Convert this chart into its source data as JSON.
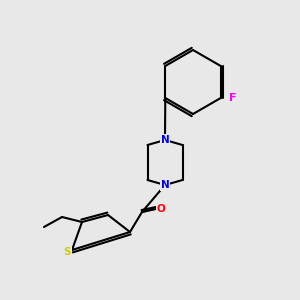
{
  "background_color": "#e8e8e8",
  "fig_size": [
    3.0,
    3.0
  ],
  "dpi": 100,
  "bond_color": "#000000",
  "bond_width": 1.5,
  "atom_colors": {
    "N": "#0000ee",
    "O": "#ff0000",
    "S": "#cccc00",
    "F": "#ff00ff",
    "C": "#000000"
  },
  "font_size": 7.5,
  "label_font_size": 7.5
}
